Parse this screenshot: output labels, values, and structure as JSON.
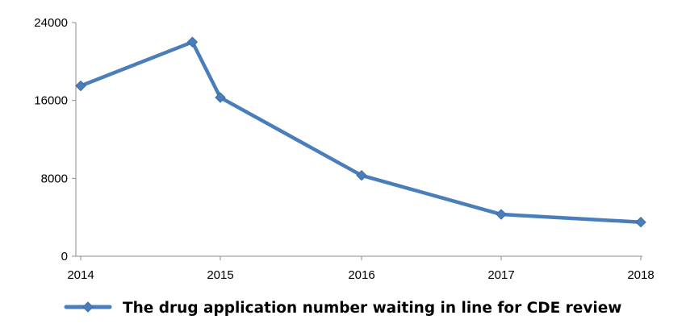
{
  "chart_data": {
    "type": "line",
    "title": "",
    "xlabel": "",
    "ylabel": "",
    "ylim": [
      0,
      24000
    ],
    "yticks": [
      0,
      8000,
      16000,
      24000
    ],
    "ytick_labels": [
      "0",
      "8000",
      "16000",
      "24000"
    ],
    "xlim": [
      2014,
      2018
    ],
    "xtick_labels": [
      "2014",
      "2015",
      "2016",
      "2017",
      "2018"
    ],
    "xtick_values": [
      2014,
      2015,
      2016,
      2017,
      2018
    ],
    "grid": false,
    "legend_position": "bottom",
    "series": [
      {
        "name": "The drug application number waiting in line for CDE review",
        "color": "#4a7ebb",
        "marker": "diamond",
        "x": [
          2014,
          2014.8,
          2015,
          2016,
          2017,
          2018
        ],
        "y": [
          17500,
          22000,
          16300,
          8300,
          4300,
          3500
        ]
      }
    ]
  }
}
